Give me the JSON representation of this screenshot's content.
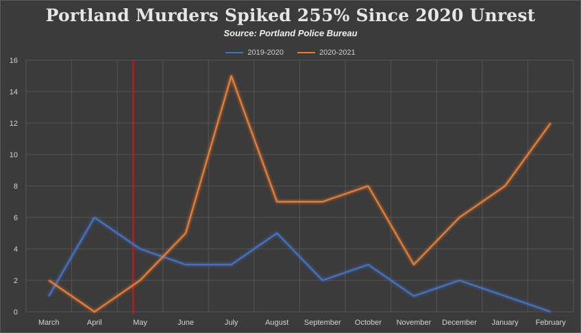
{
  "chart_data": {
    "type": "line",
    "title": "Portland Murders Spiked 255% Since 2020 Unrest",
    "subtitle": "Source: Portland Police Bureau",
    "categories": [
      "March",
      "April",
      "May",
      "June",
      "July",
      "August",
      "September",
      "October",
      "November",
      "December",
      "January",
      "February"
    ],
    "series": [
      {
        "name": "2019-2020",
        "color": "#4472c4",
        "values": [
          1,
          6,
          4,
          3,
          3,
          5,
          2,
          3,
          1,
          2,
          1,
          0
        ]
      },
      {
        "name": "2020-2021",
        "color": "#ed7d31",
        "values": [
          2,
          0,
          2,
          5,
          15,
          7,
          7,
          8,
          3,
          6,
          8,
          12
        ]
      }
    ],
    "ylim": [
      0,
      16
    ],
    "yticks": [
      "0",
      "2",
      "4",
      "6",
      "8",
      "10",
      "12",
      "14",
      "16"
    ],
    "legend_position": "top",
    "grid": true,
    "annotation": {
      "type": "vertical-line",
      "color": "#e01010",
      "position": "between April and May (late May)"
    }
  }
}
